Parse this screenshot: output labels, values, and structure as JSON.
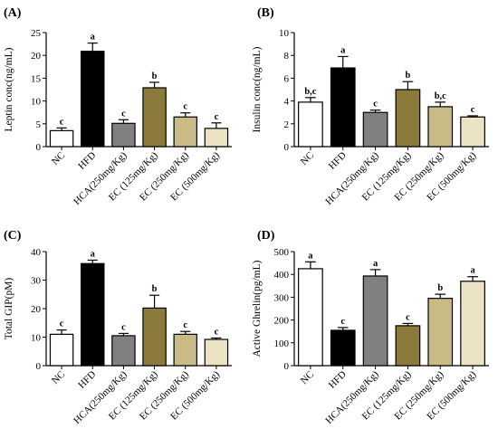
{
  "chart_data": [
    {
      "type": "bar",
      "panel_label": "(A)",
      "ylabel": "Leptin conc(ng/mL)",
      "ylim": [
        0,
        25
      ],
      "yticks": [
        0,
        5,
        10,
        15,
        20,
        25
      ],
      "categories": [
        "NC",
        "HFD",
        "HCA(250mg/Kg)",
        "EC (125mg/Kg)",
        "EC (250mg/Kg)",
        "EC (500mg/Kg)"
      ],
      "values": [
        3.5,
        20.9,
        5.1,
        12.9,
        6.5,
        4.0
      ],
      "errors": [
        0.6,
        1.8,
        0.8,
        1.2,
        0.9,
        1.2
      ],
      "sig_labels": [
        "c",
        "a",
        "c",
        "b",
        "c",
        "c"
      ],
      "colors": [
        "#ffffff",
        "#000000",
        "#808080",
        "#8b7a3a",
        "#c8bb86",
        "#ece3c4"
      ],
      "grid": false
    },
    {
      "type": "bar",
      "panel_label": "(B)",
      "ylabel": "Insulin conc(ng/mL)",
      "ylim": [
        0,
        10
      ],
      "yticks": [
        0,
        2,
        4,
        6,
        8,
        10
      ],
      "categories": [
        "NC",
        "HFD",
        "HCA(250mg/Kg)",
        "EC (125mg/Kg)",
        "EC (250mg/Kg)",
        "EC (500mg/Kg)"
      ],
      "values": [
        3.9,
        6.9,
        3.0,
        5.0,
        3.5,
        2.6
      ],
      "errors": [
        0.4,
        1.0,
        0.2,
        0.7,
        0.4,
        0.1
      ],
      "sig_labels": [
        "b,c",
        "a",
        "c",
        "b",
        "b,c",
        "c"
      ],
      "colors": [
        "#ffffff",
        "#000000",
        "#808080",
        "#8b7a3a",
        "#c8bb86",
        "#ece3c4"
      ],
      "grid": false
    },
    {
      "type": "bar",
      "panel_label": "(C)",
      "ylabel": "Total GIP(pM)",
      "ylim": [
        0,
        40
      ],
      "yticks": [
        0,
        10,
        20,
        30,
        40
      ],
      "categories": [
        "NC",
        "HFD",
        "HCA(250mg/Kg)",
        "EC (125mg/Kg)",
        "EC (250mg/Kg)",
        "EC (500mg/Kg)"
      ],
      "values": [
        11.0,
        35.8,
        10.5,
        20.2,
        11.0,
        9.2
      ],
      "errors": [
        1.5,
        1.2,
        0.8,
        4.5,
        1.0,
        0.5
      ],
      "sig_labels": [
        "c",
        "a",
        "c",
        "b",
        "c",
        "c"
      ],
      "colors": [
        "#ffffff",
        "#000000",
        "#808080",
        "#8b7a3a",
        "#c8bb86",
        "#ece3c4"
      ],
      "grid": false
    },
    {
      "type": "bar",
      "panel_label": "(D)",
      "ylabel": "Active Ghrelin(pg/mL)",
      "ylim": [
        0,
        500
      ],
      "yticks": [
        0,
        100,
        200,
        300,
        400,
        500
      ],
      "categories": [
        "NC",
        "HFD",
        "HCA(250mg/Kg)",
        "EC (125mg/Kg)",
        "EC (250mg/Kg)",
        "EC (500mg/Kg)"
      ],
      "values": [
        425,
        155,
        393,
        175,
        295,
        370
      ],
      "errors": [
        30,
        12,
        28,
        10,
        18,
        20
      ],
      "sig_labels": [
        "a",
        "c",
        "a",
        "c",
        "b",
        "a"
      ],
      "colors": [
        "#ffffff",
        "#000000",
        "#808080",
        "#8b7a3a",
        "#c8bb86",
        "#ece3c4"
      ],
      "grid": false
    }
  ]
}
